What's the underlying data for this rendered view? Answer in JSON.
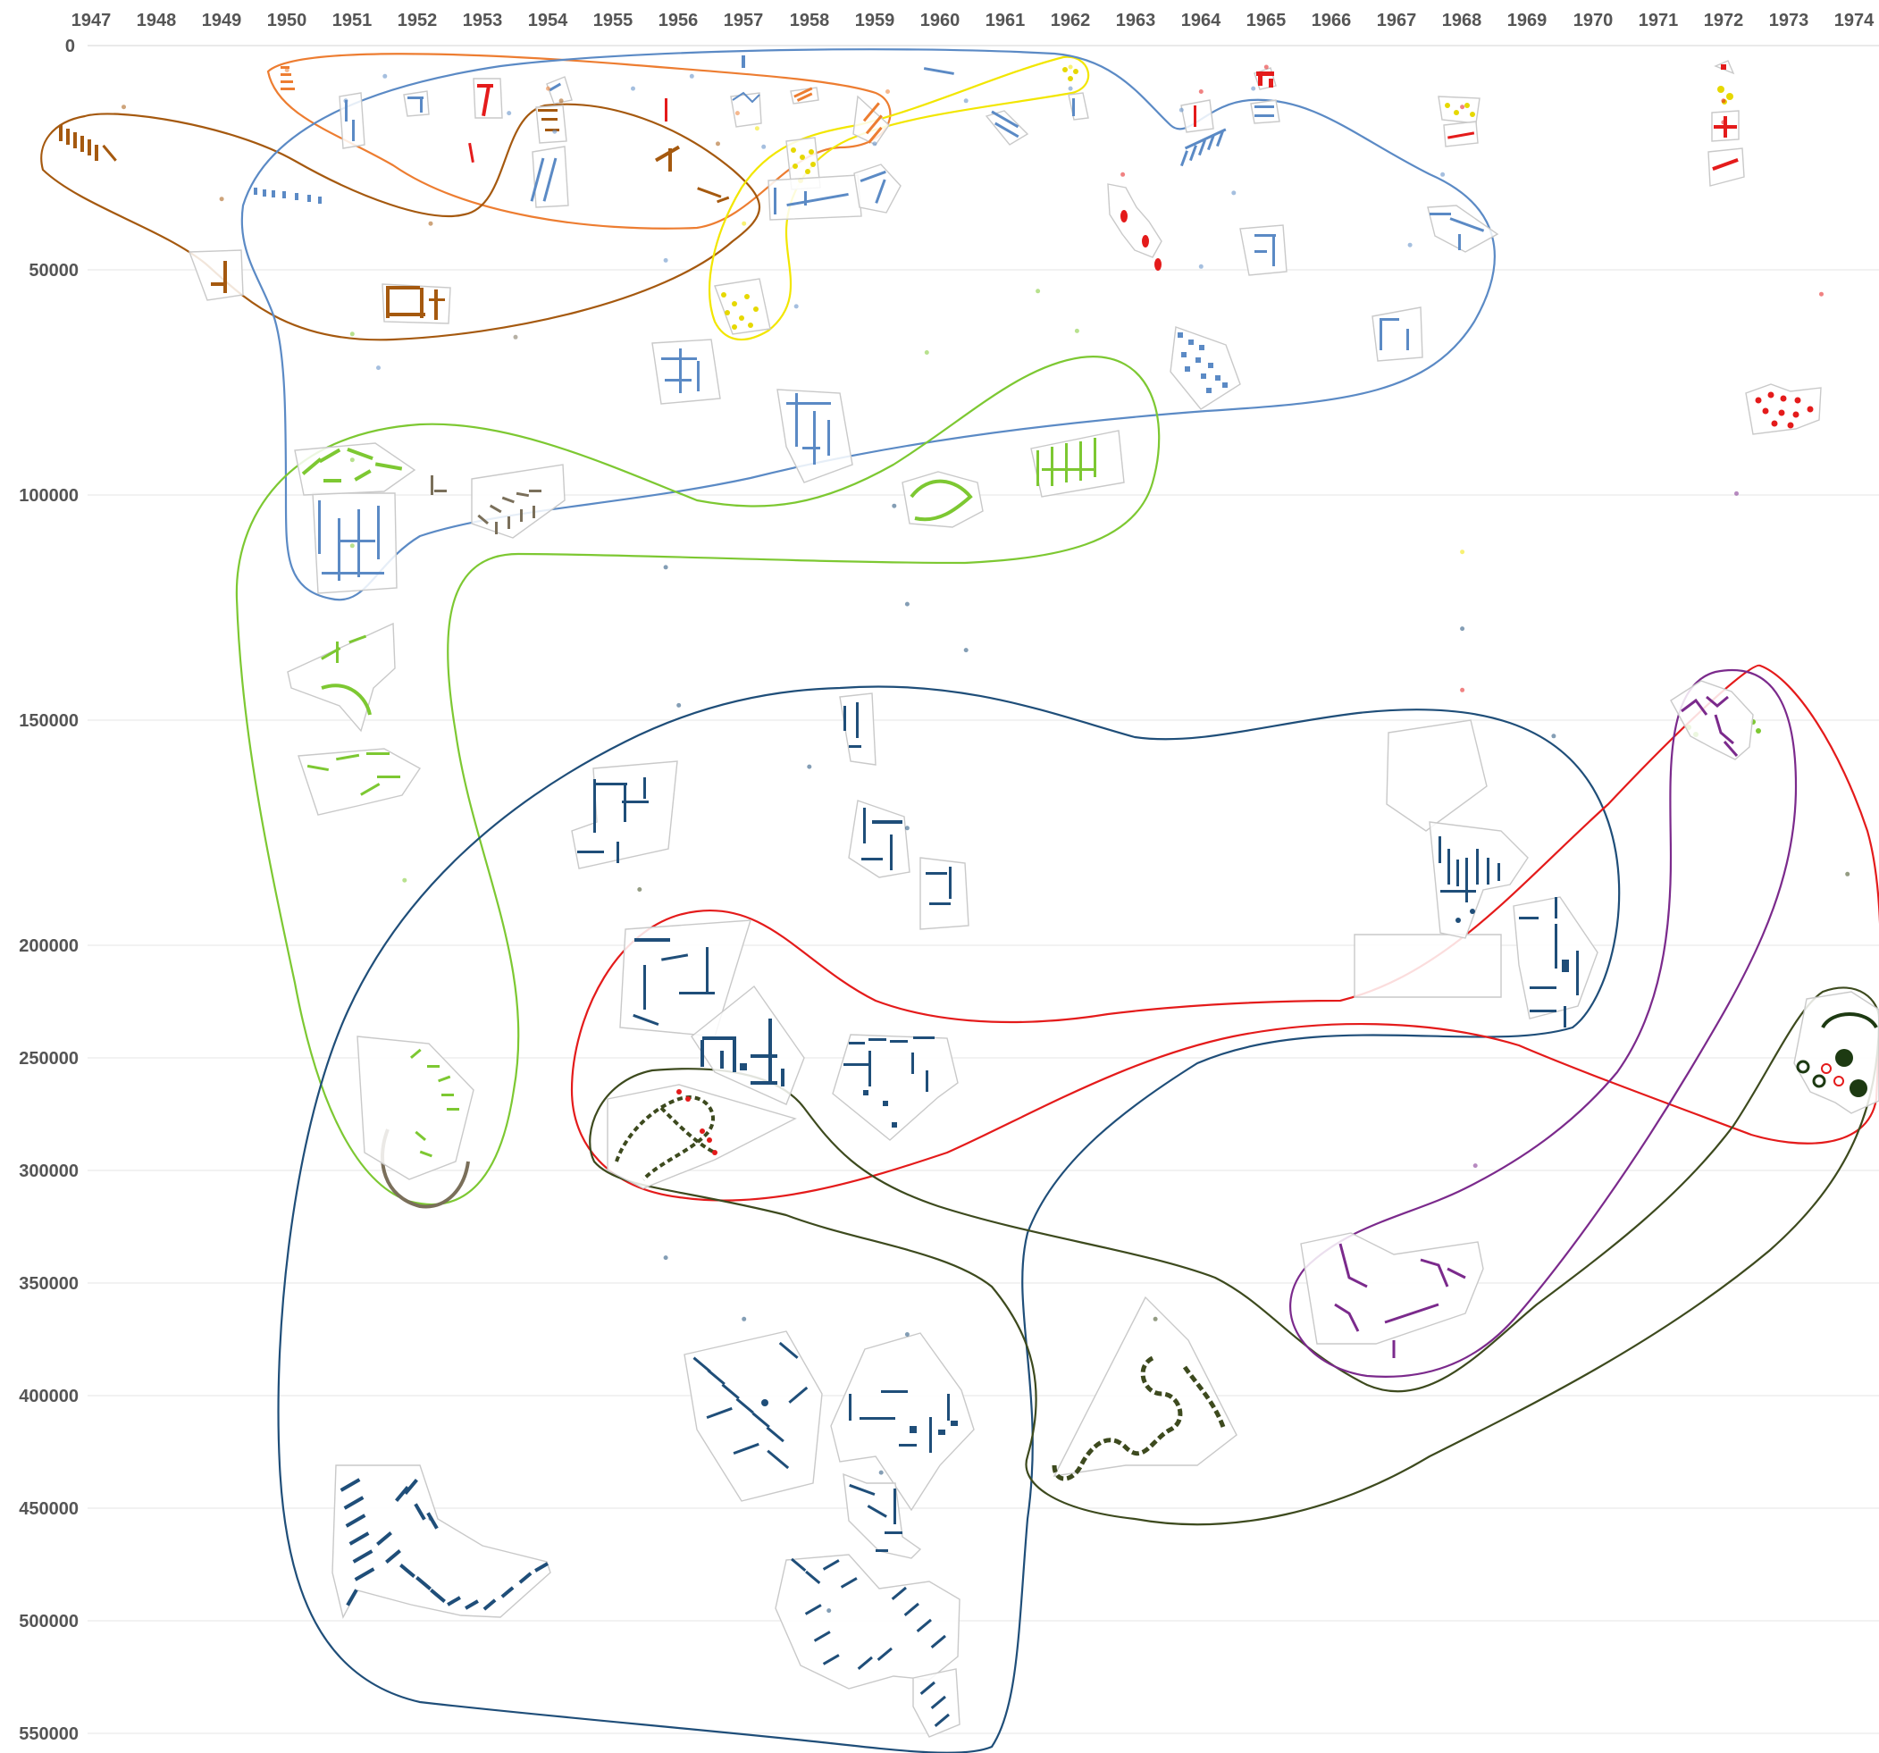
{
  "chart_data": {
    "type": "scatter",
    "title": "",
    "xlabel": "",
    "ylabel": "",
    "x_ticks": [
      "1947",
      "1948",
      "1949",
      "1950",
      "1951",
      "1952",
      "1953",
      "1954",
      "1955",
      "1956",
      "1957",
      "1958",
      "1959",
      "1960",
      "1961",
      "1962",
      "1963",
      "1964",
      "1965",
      "1966",
      "1967",
      "1968",
      "1969",
      "1970",
      "1971",
      "1972",
      "1973",
      "1974"
    ],
    "y_ticks": [
      "0",
      "50000",
      "100000",
      "150000",
      "200000",
      "250000",
      "300000",
      "350000",
      "400000",
      "450000",
      "500000",
      "550000"
    ],
    "xlim": [
      1947,
      1974
    ],
    "ylim": [
      0,
      550000
    ],
    "y_inverted": true,
    "x_axis_position": "top",
    "grid": true,
    "colors": {
      "orange": "#ed7d31",
      "brown": "#a5590f",
      "light_blue": "#5b8ac5",
      "yellow": "#f2e600",
      "green": "#7dc832",
      "dark_blue": "#1f4e79",
      "red": "#e41b1b",
      "dark_olive": "#3d4a1e",
      "purple": "#7b2a8c",
      "grey_brown": "#7a6f5a",
      "crimson": "#c9304a"
    },
    "groups": [
      {
        "color": "orange",
        "points": [
          {
            "x": 1950.0,
            "y": 8000
          },
          {
            "x": 1954.0,
            "y": 14000
          },
          {
            "x": 1956.9,
            "y": 22000
          },
          {
            "x": 1959.2,
            "y": 15000
          }
        ]
      },
      {
        "color": "brown",
        "points": [
          {
            "x": 1947.5,
            "y": 20000
          },
          {
            "x": 1949.0,
            "y": 50000
          },
          {
            "x": 1952.2,
            "y": 58000
          },
          {
            "x": 1954.2,
            "y": 18000
          },
          {
            "x": 1956.6,
            "y": 32000
          }
        ]
      },
      {
        "color": "yellow",
        "points": [
          {
            "x": 1957.2,
            "y": 27000
          },
          {
            "x": 1957.0,
            "y": 58000
          },
          {
            "x": 1962.0,
            "y": 7000
          }
        ]
      },
      {
        "color": "light_blue",
        "points": [
          {
            "x": 1950.9,
            "y": 18000
          },
          {
            "x": 1951.5,
            "y": 10000
          },
          {
            "x": 1953.4,
            "y": 22000
          },
          {
            "x": 1954.1,
            "y": 28000
          },
          {
            "x": 1955.3,
            "y": 14000
          },
          {
            "x": 1956.2,
            "y": 10000
          },
          {
            "x": 1957.3,
            "y": 33000
          },
          {
            "x": 1959.0,
            "y": 32000
          },
          {
            "x": 1960.4,
            "y": 18000
          },
          {
            "x": 1962.0,
            "y": 14000
          },
          {
            "x": 1963.7,
            "y": 21000
          },
          {
            "x": 1964.8,
            "y": 14000
          },
          {
            "x": 1964.5,
            "y": 48000
          },
          {
            "x": 1967.7,
            "y": 42000
          },
          {
            "x": 1967.2,
            "y": 65000
          },
          {
            "x": 1955.8,
            "y": 70000
          },
          {
            "x": 1957.8,
            "y": 85000
          },
          {
            "x": 1964.0,
            "y": 72000
          },
          {
            "x": 1951.4,
            "y": 105000
          }
        ]
      },
      {
        "color": "red",
        "points": [
          {
            "x": 1965.0,
            "y": 7000
          },
          {
            "x": 1964.0,
            "y": 15000
          },
          {
            "x": 1968.0,
            "y": 20000
          },
          {
            "x": 1962.8,
            "y": 42000
          },
          {
            "x": 1972.0,
            "y": 7000
          },
          {
            "x": 1972.0,
            "y": 18000
          },
          {
            "x": 1972.0,
            "y": 25000
          },
          {
            "x": 1973.5,
            "y": 81000
          }
        ]
      },
      {
        "color": "green",
        "points": [
          {
            "x": 1951.0,
            "y": 94000
          },
          {
            "x": 1951.0,
            "y": 135000
          },
          {
            "x": 1951.0,
            "y": 163000
          },
          {
            "x": 1951.8,
            "y": 272000
          },
          {
            "x": 1959.8,
            "y": 100000
          },
          {
            "x": 1961.5,
            "y": 80000
          },
          {
            "x": 1962.1,
            "y": 93000
          }
        ]
      },
      {
        "color": "grey_brown",
        "points": [
          {
            "x": 1953.5,
            "y": 95000
          }
        ]
      },
      {
        "color": "dark_blue",
        "points": [
          {
            "x": 1955.8,
            "y": 170000
          },
          {
            "x": 1959.3,
            "y": 150000
          },
          {
            "x": 1959.5,
            "y": 182000
          },
          {
            "x": 1960.4,
            "y": 197000
          },
          {
            "x": 1956.0,
            "y": 215000
          },
          {
            "x": 1958.0,
            "y": 235000
          },
          {
            "x": 1959.5,
            "y": 255000
          },
          {
            "x": 1968.0,
            "y": 190000
          },
          {
            "x": 1969.4,
            "y": 225000
          },
          {
            "x": 1955.8,
            "y": 395000
          },
          {
            "x": 1957.0,
            "y": 415000
          },
          {
            "x": 1959.5,
            "y": 420000
          },
          {
            "x": 1959.1,
            "y": 465000
          },
          {
            "x": 1958.3,
            "y": 510000
          },
          {
            "x": 1952.2,
            "y": 480000
          }
        ]
      },
      {
        "color": "yellow",
        "points": [
          {
            "x": 1968.0,
            "y": 165000
          }
        ]
      },
      {
        "color": "red",
        "points": [
          {
            "x": 1968.0,
            "y": 210000
          }
        ]
      },
      {
        "color": "dark_olive",
        "points": [
          {
            "x": 1955.4,
            "y": 275000
          },
          {
            "x": 1963.3,
            "y": 415000
          },
          {
            "x": 1973.9,
            "y": 270000
          }
        ]
      },
      {
        "color": "purple",
        "points": [
          {
            "x": 1972.2,
            "y": 146000
          },
          {
            "x": 1968.2,
            "y": 365000
          }
        ]
      }
    ]
  }
}
